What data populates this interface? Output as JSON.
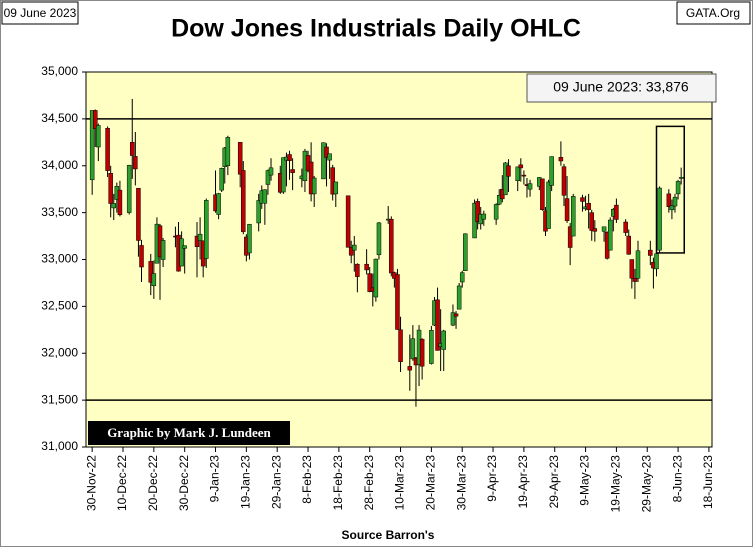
{
  "chart_data": {
    "type": "candlestick",
    "title": "Dow Jones Industrials Daily OHLC",
    "date_label": "09 June 2023",
    "site": "GATA.Org",
    "annotation": "09 June 2023:  33,876",
    "credit": "Graphic by Mark J. Lundeen",
    "source": "Source Barron's",
    "up_color": "#2ca02c",
    "down_color": "#c00000",
    "background": "#ffffc4",
    "x": [
      "2022-11-30",
      "2022-12-01",
      "2022-12-02",
      "2022-12-05",
      "2022-12-06",
      "2022-12-07",
      "2022-12-08",
      "2022-12-09",
      "2022-12-12",
      "2022-12-13",
      "2022-12-14",
      "2022-12-15",
      "2022-12-16",
      "2022-12-19",
      "2022-12-20",
      "2022-12-21",
      "2022-12-22",
      "2022-12-23",
      "2022-12-27",
      "2022-12-28",
      "2022-12-29",
      "2022-12-30",
      "2023-01-03",
      "2023-01-04",
      "2023-01-05",
      "2023-01-06",
      "2023-01-09",
      "2023-01-10",
      "2023-01-11",
      "2023-01-12",
      "2023-01-13",
      "2023-01-17",
      "2023-01-18",
      "2023-01-19",
      "2023-01-20",
      "2023-01-23",
      "2023-01-24",
      "2023-01-25",
      "2023-01-26",
      "2023-01-27",
      "2023-01-30",
      "2023-01-31",
      "2023-02-01",
      "2023-02-02",
      "2023-02-03",
      "2023-02-06",
      "2023-02-07",
      "2023-02-08",
      "2023-02-09",
      "2023-02-10",
      "2023-02-13",
      "2023-02-14",
      "2023-02-15",
      "2023-02-16",
      "2023-02-17",
      "2023-02-21",
      "2023-02-22",
      "2023-02-23",
      "2023-02-24",
      "2023-02-27",
      "2023-02-28",
      "2023-03-01",
      "2023-03-02",
      "2023-03-03",
      "2023-03-06",
      "2023-03-07",
      "2023-03-08",
      "2023-03-09",
      "2023-03-10",
      "2023-03-13",
      "2023-03-14",
      "2023-03-15",
      "2023-03-16",
      "2023-03-17",
      "2023-03-20",
      "2023-03-21",
      "2023-03-22",
      "2023-03-23",
      "2023-03-24",
      "2023-03-27",
      "2023-03-28",
      "2023-03-29",
      "2023-03-30",
      "2023-03-31",
      "2023-04-03",
      "2023-04-04",
      "2023-04-05",
      "2023-04-06",
      "2023-04-10",
      "2023-04-11",
      "2023-04-12",
      "2023-04-13",
      "2023-04-14",
      "2023-04-17",
      "2023-04-18",
      "2023-04-19",
      "2023-04-20",
      "2023-04-21",
      "2023-04-24",
      "2023-04-25",
      "2023-04-26",
      "2023-04-27",
      "2023-04-28",
      "2023-05-01",
      "2023-05-02",
      "2023-05-03",
      "2023-05-04",
      "2023-05-05",
      "2023-05-08",
      "2023-05-09",
      "2023-05-10",
      "2023-05-11",
      "2023-05-12",
      "2023-05-15",
      "2023-05-16",
      "2023-05-17",
      "2023-05-18",
      "2023-05-19",
      "2023-05-22",
      "2023-05-23",
      "2023-05-24",
      "2023-05-25",
      "2023-05-26",
      "2023-05-30",
      "2023-05-31",
      "2023-06-01",
      "2023-06-02",
      "2023-06-05",
      "2023-06-06",
      "2023-06-07",
      "2023-06-08",
      "2023-06-09"
    ],
    "open": [
      33850,
      34590,
      34200,
      34400,
      33920,
      33550,
      33640,
      33740,
      33500,
      34250,
      34100,
      33760,
      33150,
      32980,
      32720,
      32960,
      33360,
      33000,
      33250,
      33260,
      32930,
      33120,
      33250,
      33200,
      33200,
      33010,
      33690,
      33480,
      33740,
      33990,
      34000,
      34250,
      33950,
      33240,
      33070,
      33390,
      33600,
      33600,
      33800,
      33900,
      33920,
      33720,
      34060,
      34120,
      33960,
      33860,
      33840,
      34110,
      34040,
      33700,
      33860,
      34200,
      34060,
      33980,
      33700,
      33680,
      33130,
      33100,
      32950,
      32950,
      32850,
      32700,
      32600,
      33050,
      33420,
      33430,
      32860,
      32840,
      32250,
      31860,
      31940,
      31950,
      31880,
      32150,
      31890,
      32300,
      32570,
      32070,
      32040,
      32300,
      32420,
      32470,
      32760,
      32880,
      33230,
      33620,
      33380,
      33430,
      33430,
      33590,
      33750,
      33690,
      34000,
      33840,
      34010,
      33900,
      33800,
      33750,
      33780,
      33860,
      33520,
      33330,
      33790,
      34090,
      33990,
      33650,
      33350,
      33250,
      33660,
      33540,
      33600,
      33500,
      33330,
      33300,
      33290,
      33100,
      33460,
      33580,
      33400,
      33250,
      33000,
      32800,
      32800,
      33100,
      32970,
      32900,
      33100,
      33700,
      33530,
      33570,
      33700,
      33870
    ],
    "high": [
      34590,
      34600,
      34450,
      34420,
      34000,
      33700,
      33820,
      33840,
      34010,
      34712,
      34360,
      33760,
      33210,
      33060,
      32990,
      33450,
      33380,
      33230,
      33350,
      33400,
      33300,
      33150,
      33400,
      33450,
      33200,
      33650,
      33950,
      33710,
      33980,
      34200,
      34320,
      34250,
      34050,
      33270,
      33380,
      33700,
      33790,
      33750,
      33960,
      34080,
      34000,
      34090,
      34140,
      34160,
      34080,
      33970,
      34180,
      34160,
      34250,
      33890,
      34250,
      34240,
      34130,
      34010,
      33830,
      33680,
      33200,
      33250,
      32960,
      33110,
      32920,
      32850,
      33010,
      33400,
      33570,
      33460,
      32870,
      32900,
      32390,
      32200,
      32300,
      31960,
      32300,
      32160,
      32290,
      32600,
      32700,
      32470,
      32250,
      32520,
      32450,
      32750,
      32880,
      33280,
      33640,
      33650,
      33560,
      33520,
      33600,
      33750,
      33900,
      34040,
      34070,
      33990,
      34080,
      33950,
      33870,
      33850,
      33880,
      33860,
      33560,
      33850,
      34100,
      34260,
      34020,
      33890,
      33390,
      33700,
      33690,
      33680,
      33700,
      33530,
      33420,
      33350,
      33300,
      33450,
      33550,
      33650,
      33430,
      33320,
      33000,
      32900,
      33200,
      33200,
      33020,
      33090,
      33780,
      33750,
      33640,
      33700,
      33850,
      33980
    ],
    "low": [
      33690,
      34200,
      34050,
      33880,
      33450,
      33420,
      33500,
      33460,
      33480,
      33860,
      33790,
      33030,
      32760,
      32620,
      32580,
      32960,
      32570,
      32920,
      33130,
      32870,
      32930,
      32850,
      32810,
      33000,
      32810,
      32910,
      33500,
      33430,
      33720,
      33810,
      33900,
      33770,
      33270,
      32980,
      33000,
      33300,
      33540,
      33370,
      33690,
      33840,
      33700,
      33700,
      33780,
      33850,
      33740,
      33770,
      33720,
      33930,
      33620,
      33560,
      33860,
      33780,
      33860,
      33630,
      33560,
      33130,
      32960,
      32870,
      32650,
      32840,
      32650,
      32500,
      32550,
      33000,
      33380,
      32820,
      32700,
      32250,
      31800,
      31600,
      31920,
      31430,
      31650,
      31720,
      31880,
      32290,
      32030,
      31810,
      31810,
      32290,
      32260,
      32470,
      32700,
      32880,
      33230,
      33320,
      33320,
      33360,
      33370,
      33580,
      33610,
      33690,
      33720,
      33730,
      33830,
      33800,
      33660,
      33670,
      33740,
      33520,
      33250,
      33330,
      33730,
      34000,
      33570,
      33390,
      32940,
      33250,
      33510,
      33520,
      33330,
      33200,
      33190,
      33190,
      33000,
      33100,
      33300,
      33390,
      33250,
      33050,
      32690,
      32580,
      32760,
      32940,
      32690,
      32820,
      33070,
      33500,
      33430,
      33500,
      33640,
      33800
    ],
    "close": [
      34590,
      34395,
      34430,
      33948,
      33597,
      33598,
      33781,
      33477,
      34005,
      34109,
      33966,
      33203,
      32920,
      32757,
      32850,
      33377,
      33027,
      33204,
      33241,
      32876,
      33221,
      33147,
      33136,
      33270,
      32930,
      33631,
      33518,
      33704,
      33973,
      34190,
      34303,
      33910,
      33297,
      33045,
      33375,
      33630,
      33734,
      33744,
      33949,
      33978,
      33717,
      34086,
      34093,
      34054,
      33926,
      33891,
      34156,
      33949,
      33699,
      33869,
      34246,
      34089,
      34128,
      33697,
      33827,
      33130,
      33045,
      33154,
      32817,
      32889,
      32657,
      32662,
      33004,
      33391,
      33431,
      32856,
      32798,
      32254,
      31910,
      31820,
      32155,
      31875,
      32247,
      31862,
      32245,
      32561,
      32030,
      32105,
      32238,
      32433,
      32395,
      32718,
      32860,
      33274,
      33601,
      33403,
      33483,
      33485,
      33587,
      33685,
      33647,
      34030,
      33887,
      33988,
      33977,
      33897,
      33787,
      33809,
      33875,
      33531,
      33302,
      33827,
      34098,
      34051,
      33685,
      33414,
      33128,
      33674,
      33619,
      33562,
      33531,
      33309,
      33301,
      33349,
      33012,
      33421,
      33536,
      33427,
      33287,
      33056,
      32800,
      32765,
      33093,
      33043,
      32908,
      33061,
      33762,
      33563,
      33573,
      33665,
      33833,
      33876
    ],
    "xlim": [
      "2022-11-28",
      "2023-06-19"
    ],
    "xticks": [
      {
        "value": "2022-11-30",
        "label": "30-Nov-22"
      },
      {
        "value": "2022-12-10",
        "label": "10-Dec-22"
      },
      {
        "value": "2022-12-20",
        "label": "20-Dec-22"
      },
      {
        "value": "2022-12-30",
        "label": "30-Dec-22"
      },
      {
        "value": "2023-01-09",
        "label": "9-Jan-23"
      },
      {
        "value": "2023-01-19",
        "label": "19-Jan-23"
      },
      {
        "value": "2023-01-29",
        "label": "29-Jan-23"
      },
      {
        "value": "2023-02-08",
        "label": "8-Feb-23"
      },
      {
        "value": "2023-02-18",
        "label": "18-Feb-23"
      },
      {
        "value": "2023-02-28",
        "label": "28-Feb-23"
      },
      {
        "value": "2023-03-10",
        "label": "10-Mar-23"
      },
      {
        "value": "2023-03-20",
        "label": "20-Mar-23"
      },
      {
        "value": "2023-03-30",
        "label": "30-Mar-23"
      },
      {
        "value": "2023-04-09",
        "label": "9-Apr-23"
      },
      {
        "value": "2023-04-19",
        "label": "19-Apr-23"
      },
      {
        "value": "2023-04-29",
        "label": "29-Apr-23"
      },
      {
        "value": "2023-05-09",
        "label": "9-May-23"
      },
      {
        "value": "2023-05-19",
        "label": "19-May-23"
      },
      {
        "value": "2023-05-29",
        "label": "29-May-23"
      },
      {
        "value": "2023-06-08",
        "label": "8-Jun-23"
      },
      {
        "value": "2023-06-18",
        "label": "18-Jun-23"
      }
    ],
    "ylim": [
      31000,
      35000
    ],
    "yticks": [
      {
        "value": 31000,
        "label": "31,000"
      },
      {
        "value": 31500,
        "label": "31,500"
      },
      {
        "value": 32000,
        "label": "32,000"
      },
      {
        "value": 32500,
        "label": "32,500"
      },
      {
        "value": 33000,
        "label": "33,000"
      },
      {
        "value": 33500,
        "label": "33,500"
      },
      {
        "value": 34000,
        "label": "34,000"
      },
      {
        "value": 34500,
        "label": "34,500"
      },
      {
        "value": 35000,
        "label": "35,000"
      }
    ],
    "hlines": [
      34500,
      31500
    ],
    "highlight": {
      "xlim": [
        "2023-06-01",
        "2023-06-10"
      ],
      "ylim": [
        33070,
        34420
      ]
    }
  }
}
